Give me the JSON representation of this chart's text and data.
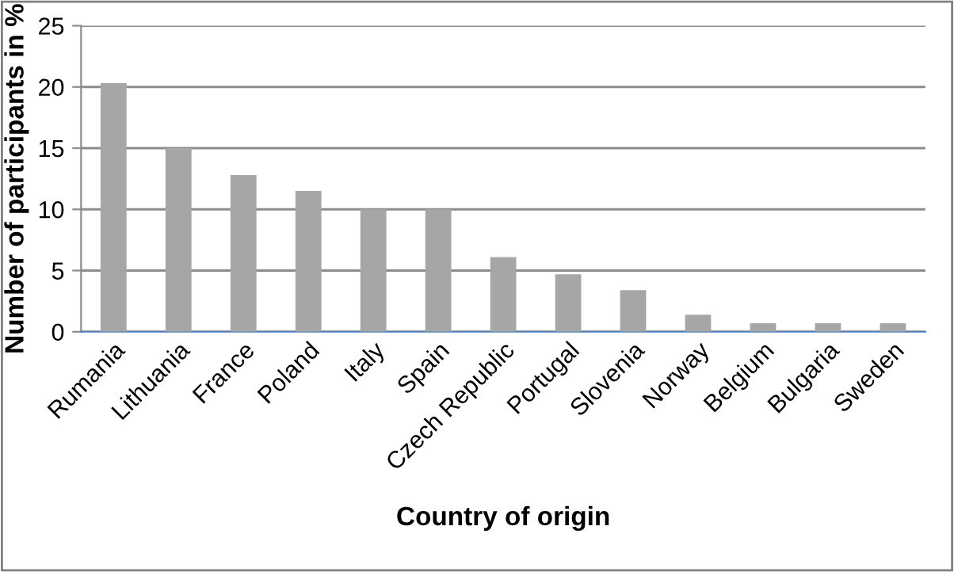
{
  "chart_data": {
    "type": "bar",
    "xlabel": "Country of origin",
    "ylabel": "Number of participants in %",
    "categories": [
      "Rumania",
      "Lithuania",
      "France",
      "Poland",
      "Italy",
      "Spain",
      "Czech Republic",
      "Portugal",
      "Slovenia",
      "Norway",
      "Belgium",
      "Bulgaria",
      "Sweden"
    ],
    "values": [
      20.3,
      15.0,
      12.8,
      11.5,
      10.0,
      10.0,
      6.1,
      4.7,
      3.4,
      1.4,
      0.7,
      0.7,
      0.7
    ],
    "color": "#a6a6a6",
    "ylim": [
      0,
      25
    ],
    "yticks": [
      0,
      5,
      10,
      15,
      20,
      25
    ],
    "grid": "y",
    "legend": false
  }
}
